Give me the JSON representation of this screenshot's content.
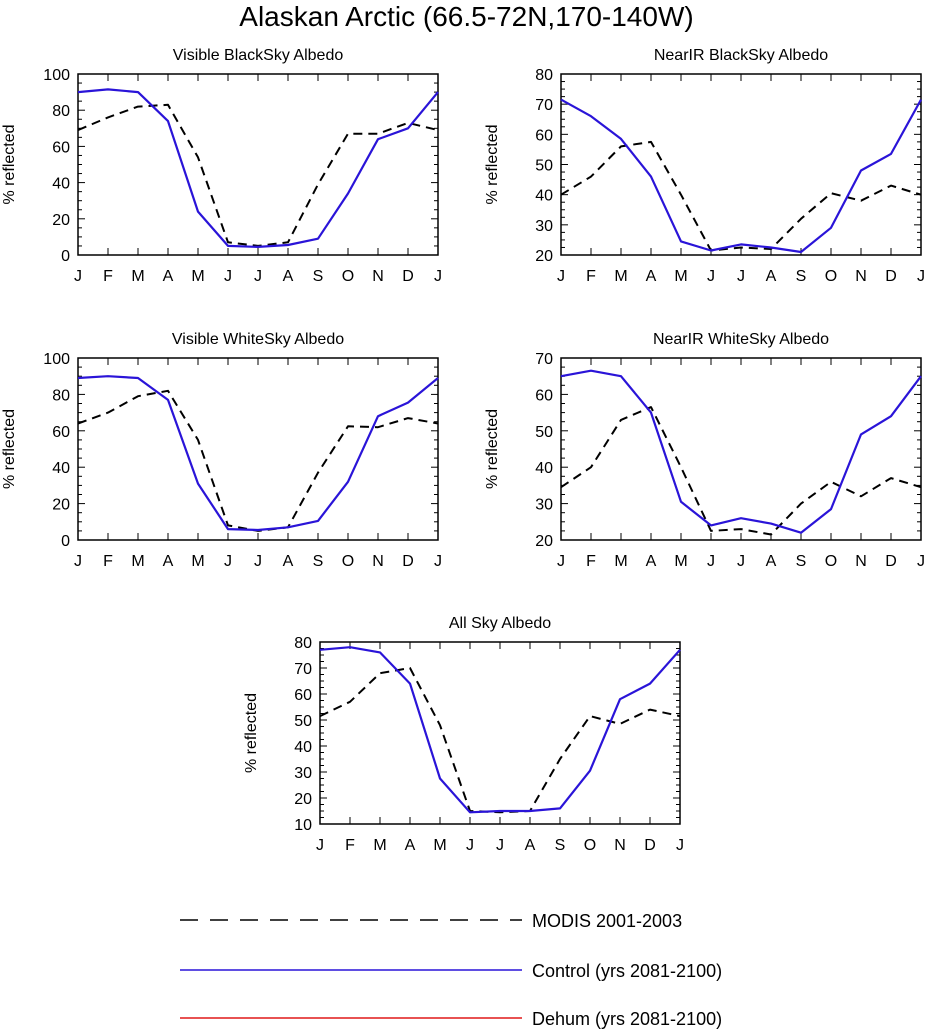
{
  "title": "Alaskan Arctic (66.5-72N,170-140W)",
  "colors": {
    "modis": "#000000",
    "control": "#2a14d8",
    "dehum": "#e01818",
    "axis": "#000000"
  },
  "chart_data": [
    {
      "type": "line",
      "title": "Visible BlackSky Albedo",
      "ylabel": "% reflected",
      "xlabel": "",
      "categories": [
        "J",
        "F",
        "M",
        "A",
        "M",
        "J",
        "J",
        "A",
        "S",
        "O",
        "N",
        "D",
        "J"
      ],
      "ylim": [
        0,
        100
      ],
      "yticks": [
        0,
        20,
        40,
        60,
        80,
        100
      ],
      "series": [
        {
          "name": "MODIS 2001-2003",
          "style": "dashed",
          "values": [
            69,
            76,
            82,
            83,
            54,
            7,
            5,
            7,
            39,
            67,
            67,
            73,
            69
          ]
        },
        {
          "name": "Control (yrs 2081-2100)",
          "style": "solid",
          "values": [
            90,
            91.5,
            90,
            74,
            24,
            5,
            4.5,
            5.5,
            9,
            34,
            64,
            70,
            90
          ]
        }
      ]
    },
    {
      "type": "line",
      "title": "NearIR BlackSky Albedo",
      "ylabel": "% reflected",
      "xlabel": "",
      "categories": [
        "J",
        "F",
        "M",
        "A",
        "M",
        "J",
        "J",
        "A",
        "S",
        "O",
        "N",
        "D",
        "J"
      ],
      "ylim": [
        20,
        80
      ],
      "yticks": [
        20,
        30,
        40,
        50,
        60,
        70,
        80
      ],
      "series": [
        {
          "name": "MODIS 2001-2003",
          "style": "dashed",
          "values": [
            40,
            46,
            56,
            57.5,
            40,
            21.5,
            22.5,
            22,
            32,
            40.5,
            38,
            43,
            40
          ]
        },
        {
          "name": "Control (yrs 2081-2100)",
          "style": "solid",
          "values": [
            71.5,
            66,
            58.5,
            46,
            24.5,
            21.5,
            23.5,
            22.5,
            21,
            29,
            48,
            53.5,
            71.5
          ]
        }
      ]
    },
    {
      "type": "line",
      "title": "Visible WhiteSky Albedo",
      "ylabel": "% reflected",
      "xlabel": "",
      "categories": [
        "J",
        "F",
        "M",
        "A",
        "M",
        "J",
        "J",
        "A",
        "S",
        "O",
        "N",
        "D",
        "J"
      ],
      "ylim": [
        0,
        100
      ],
      "yticks": [
        0,
        20,
        40,
        60,
        80,
        100
      ],
      "series": [
        {
          "name": "MODIS 2001-2003",
          "style": "dashed",
          "values": [
            64,
            70,
            79,
            82,
            55,
            8,
            5,
            7,
            37,
            62.5,
            62,
            67,
            64
          ]
        },
        {
          "name": "Control (yrs 2081-2100)",
          "style": "solid",
          "values": [
            89,
            90,
            89,
            77,
            31,
            6,
            5.5,
            7,
            10.5,
            32,
            68,
            75.5,
            89
          ]
        }
      ]
    },
    {
      "type": "line",
      "title": "NearIR WhiteSky Albedo",
      "ylabel": "% reflected",
      "xlabel": "",
      "categories": [
        "J",
        "F",
        "M",
        "A",
        "M",
        "J",
        "J",
        "A",
        "S",
        "O",
        "N",
        "D",
        "J"
      ],
      "ylim": [
        20,
        70
      ],
      "yticks": [
        20,
        30,
        40,
        50,
        60,
        70
      ],
      "series": [
        {
          "name": "MODIS 2001-2003",
          "style": "dashed",
          "values": [
            34.5,
            40,
            53,
            56.5,
            40,
            22.5,
            23,
            21.5,
            30,
            36,
            32,
            37,
            34.5
          ]
        },
        {
          "name": "Control (yrs 2081-2100)",
          "style": "solid",
          "values": [
            65,
            66.5,
            65,
            55,
            30.5,
            24,
            26,
            24.5,
            22,
            28.5,
            49,
            54,
            65
          ]
        }
      ]
    },
    {
      "type": "line",
      "title": "All Sky Albedo",
      "ylabel": "% reflected",
      "xlabel": "",
      "categories": [
        "J",
        "F",
        "M",
        "A",
        "M",
        "J",
        "J",
        "A",
        "S",
        "O",
        "N",
        "D",
        "J"
      ],
      "ylim": [
        10,
        80
      ],
      "yticks": [
        10,
        20,
        30,
        40,
        50,
        60,
        70,
        80
      ],
      "series": [
        {
          "name": "MODIS 2001-2003",
          "style": "dashed",
          "values": [
            51.5,
            57,
            68,
            70,
            48,
            15,
            14.5,
            15,
            35,
            51.5,
            48.5,
            54,
            51.5
          ]
        },
        {
          "name": "Control (yrs 2081-2100)",
          "style": "solid",
          "values": [
            77,
            78,
            76,
            64,
            27.5,
            14.5,
            15,
            15,
            16,
            30.5,
            58,
            64,
            77
          ]
        }
      ]
    }
  ],
  "legend": [
    {
      "label": "MODIS 2001-2003",
      "style": "dashed",
      "color_key": "modis"
    },
    {
      "label": "Control (yrs 2081-2100)",
      "style": "solid",
      "color_key": "control"
    },
    {
      "label": "Dehum (yrs 2081-2100)",
      "style": "solid",
      "color_key": "dehum"
    }
  ]
}
